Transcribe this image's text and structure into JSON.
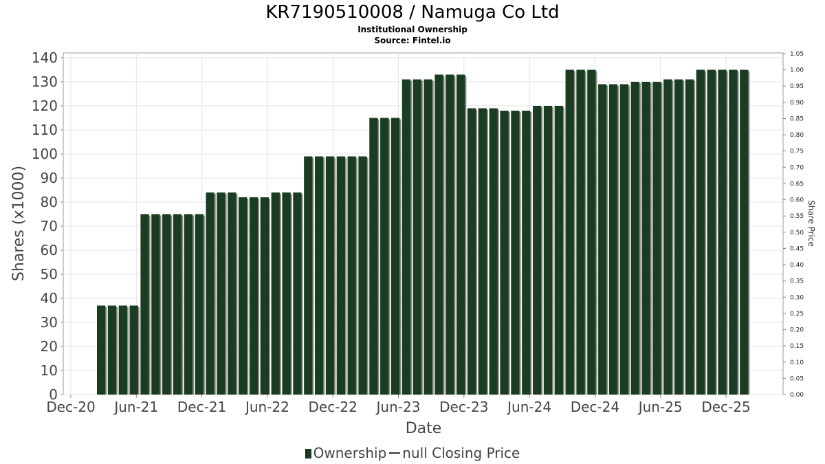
{
  "title": "KR7190510008 / Namuga Co Ltd",
  "subtitle": "Institutional Ownership",
  "source": "Source: Fintel.io",
  "legend": {
    "ownership_label": "Ownership",
    "price_label": "null Closing Price"
  },
  "chart_data": {
    "type": "bar",
    "xlabel": "Date",
    "ylabel": "Shares (x1000)",
    "y2label": "Share Price",
    "ylim": [
      0,
      140
    ],
    "y2lim": [
      0,
      1.05
    ],
    "yticks": [
      0,
      10,
      20,
      30,
      40,
      50,
      60,
      70,
      80,
      90,
      100,
      110,
      120,
      130,
      140
    ],
    "y2ticks": [
      "0.00",
      "0.05",
      "0.10",
      "0.15",
      "0.20",
      "0.25",
      "0.30",
      "0.35",
      "0.40",
      "0.45",
      "0.50",
      "0.55",
      "0.60",
      "0.65",
      "0.70",
      "0.75",
      "0.80",
      "0.85",
      "0.90",
      "0.95",
      "1.00",
      "1.05"
    ],
    "xtick_labels": [
      "Dec-20",
      "Jun-21",
      "Dec-21",
      "Jun-22",
      "Dec-22",
      "Jun-23",
      "Dec-23",
      "Jun-24",
      "Dec-24",
      "Jun-25",
      "Dec-25"
    ],
    "grid": true,
    "series": [
      {
        "name": "Ownership",
        "color": "#1a3d22",
        "values": [
          37,
          37,
          37,
          37,
          75,
          75,
          75,
          75,
          75,
          75,
          84,
          84,
          84,
          82,
          82,
          82,
          84,
          84,
          84,
          99,
          99,
          99,
          99,
          99,
          99,
          115,
          115,
          115,
          131,
          131,
          131,
          133,
          133,
          133,
          119,
          119,
          119,
          118,
          118,
          118,
          120,
          120,
          120,
          135,
          135,
          135,
          129,
          129,
          129,
          130,
          130,
          130,
          131,
          131,
          131,
          135,
          135,
          135,
          135,
          135
        ]
      }
    ]
  }
}
